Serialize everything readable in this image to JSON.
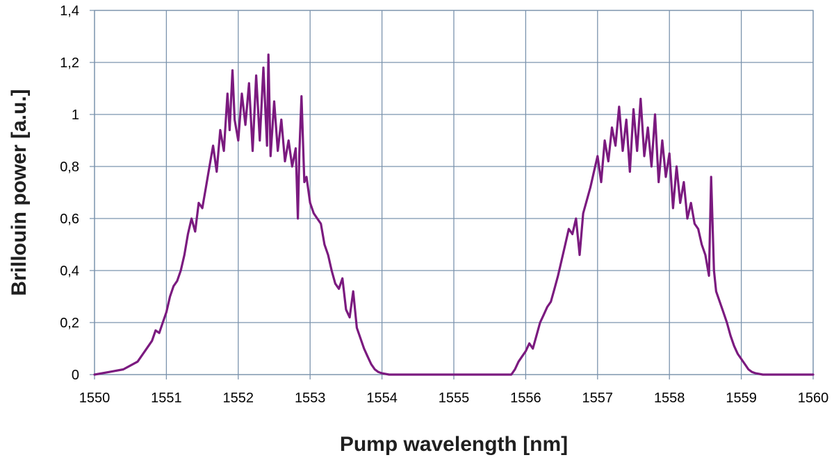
{
  "chart_data": {
    "type": "line",
    "title": "",
    "xlabel": "Pump wavelength [nm]",
    "ylabel": "Brillouin power [a.u.]",
    "xlim": [
      1550,
      1560
    ],
    "ylim": [
      0,
      1.4
    ],
    "x_ticks": [
      1550,
      1551,
      1552,
      1553,
      1554,
      1555,
      1556,
      1557,
      1558,
      1559,
      1560
    ],
    "x_tick_labels": [
      "1550",
      "1551",
      "1552",
      "1553",
      "1554",
      "1555",
      "1556",
      "1557",
      "1558",
      "1559",
      "1560"
    ],
    "y_ticks": [
      0,
      0.2,
      0.4,
      0.6,
      0.8,
      1.0,
      1.2,
      1.4
    ],
    "y_tick_labels": [
      "0",
      "0,2",
      "0,4",
      "0,6",
      "0,8",
      "1",
      "1,2",
      "1,4"
    ],
    "grid": true,
    "legend": "none",
    "series": [
      {
        "color": "#7b1a7f",
        "x": [
          1550.0,
          1550.2,
          1550.4,
          1550.6,
          1550.7,
          1550.8,
          1550.85,
          1550.9,
          1550.95,
          1551.0,
          1551.05,
          1551.1,
          1551.15,
          1551.2,
          1551.25,
          1551.3,
          1551.35,
          1551.4,
          1551.45,
          1551.5,
          1551.55,
          1551.6,
          1551.65,
          1551.7,
          1551.75,
          1551.8,
          1551.85,
          1551.88,
          1551.92,
          1551.95,
          1552.0,
          1552.05,
          1552.1,
          1552.15,
          1552.2,
          1552.25,
          1552.3,
          1552.35,
          1552.4,
          1552.42,
          1552.45,
          1552.5,
          1552.55,
          1552.6,
          1552.65,
          1552.7,
          1552.75,
          1552.8,
          1552.83,
          1552.85,
          1552.88,
          1552.92,
          1552.95,
          1553.0,
          1553.05,
          1553.1,
          1553.15,
          1553.2,
          1553.25,
          1553.3,
          1553.35,
          1553.4,
          1553.45,
          1553.5,
          1553.55,
          1553.6,
          1553.65,
          1553.7,
          1553.75,
          1553.8,
          1553.85,
          1553.9,
          1553.95,
          1554.0,
          1554.1,
          1555.0,
          1555.8,
          1555.85,
          1555.9,
          1555.95,
          1556.0,
          1556.05,
          1556.1,
          1556.15,
          1556.2,
          1556.25,
          1556.3,
          1556.35,
          1556.4,
          1556.45,
          1556.5,
          1556.55,
          1556.6,
          1556.65,
          1556.7,
          1556.75,
          1556.8,
          1556.85,
          1556.9,
          1556.95,
          1557.0,
          1557.05,
          1557.1,
          1557.15,
          1557.2,
          1557.25,
          1557.3,
          1557.35,
          1557.4,
          1557.45,
          1557.5,
          1557.55,
          1557.6,
          1557.65,
          1557.7,
          1557.75,
          1557.8,
          1557.85,
          1557.9,
          1557.95,
          1558.0,
          1558.05,
          1558.1,
          1558.15,
          1558.2,
          1558.25,
          1558.3,
          1558.35,
          1558.4,
          1558.45,
          1558.5,
          1558.55,
          1558.58,
          1558.62,
          1558.65,
          1558.7,
          1558.75,
          1558.8,
          1558.85,
          1558.9,
          1558.95,
          1559.0,
          1559.05,
          1559.1,
          1559.15,
          1559.2,
          1559.3,
          1560.0
        ],
        "values": [
          0,
          0.01,
          0.02,
          0.05,
          0.09,
          0.13,
          0.17,
          0.16,
          0.2,
          0.24,
          0.3,
          0.34,
          0.36,
          0.4,
          0.46,
          0.54,
          0.6,
          0.55,
          0.66,
          0.64,
          0.72,
          0.8,
          0.88,
          0.78,
          0.94,
          0.86,
          1.08,
          0.94,
          1.17,
          0.98,
          0.9,
          1.08,
          0.96,
          1.12,
          0.86,
          1.15,
          0.9,
          1.18,
          0.88,
          1.23,
          0.84,
          1.05,
          0.86,
          0.98,
          0.82,
          0.9,
          0.8,
          0.87,
          0.6,
          0.85,
          1.07,
          0.74,
          0.76,
          0.66,
          0.62,
          0.6,
          0.58,
          0.5,
          0.46,
          0.4,
          0.35,
          0.33,
          0.37,
          0.25,
          0.22,
          0.32,
          0.18,
          0.14,
          0.1,
          0.07,
          0.04,
          0.02,
          0.01,
          0.005,
          0,
          0,
          0,
          0.02,
          0.05,
          0.07,
          0.09,
          0.12,
          0.1,
          0.15,
          0.2,
          0.23,
          0.26,
          0.28,
          0.33,
          0.38,
          0.44,
          0.5,
          0.56,
          0.54,
          0.6,
          0.46,
          0.62,
          0.67,
          0.72,
          0.78,
          0.84,
          0.74,
          0.9,
          0.82,
          0.95,
          0.88,
          1.03,
          0.86,
          0.98,
          0.78,
          1.02,
          0.86,
          1.06,
          0.84,
          0.95,
          0.8,
          1.0,
          0.74,
          0.9,
          0.76,
          0.85,
          0.64,
          0.8,
          0.66,
          0.74,
          0.6,
          0.66,
          0.58,
          0.56,
          0.5,
          0.46,
          0.38,
          0.76,
          0.4,
          0.32,
          0.28,
          0.24,
          0.2,
          0.15,
          0.11,
          0.08,
          0.06,
          0.04,
          0.02,
          0.01,
          0.005,
          0,
          0
        ]
      }
    ]
  }
}
